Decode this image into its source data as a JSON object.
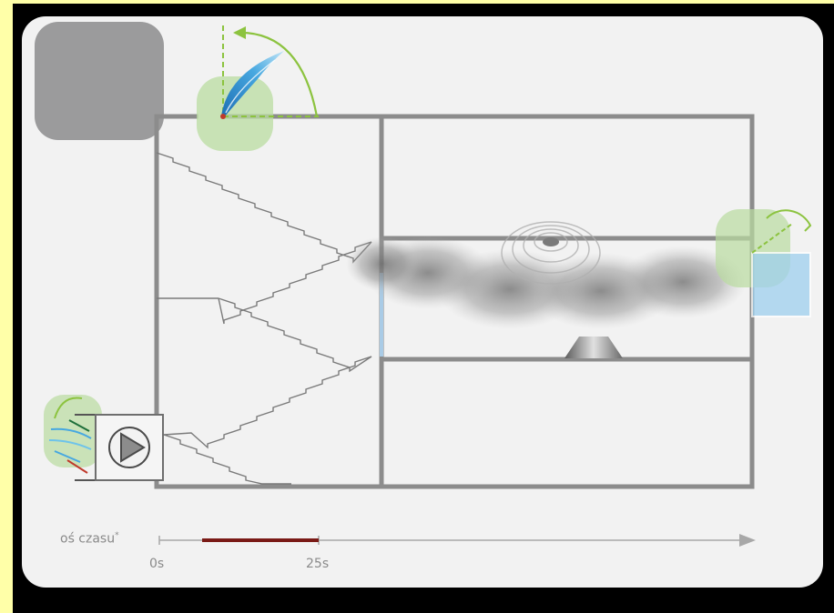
{
  "timeline": {
    "axis_label": "oś czasu",
    "axis_marker": "*",
    "tick_start": "0s",
    "tick_mark": "25s"
  },
  "colors": {
    "background": "#000000",
    "border_strip": "#ffffa8",
    "panel": "#f2f2f2",
    "wall": "#8c8c8c",
    "corner_block": "#9b9b9c",
    "highlight_green": "#b9dca0",
    "highlight_blue": "#9fd0ee",
    "timeline_segment": "#7a1a16",
    "timeline_axis": "#a8a8a8"
  },
  "icons": {
    "fan": "fan-icon",
    "damper": "damper-flap-icon",
    "rotate_arrow": "rotate-arrow-icon",
    "smoke_cloud": "smoke-cloud-icon",
    "fire_source": "fire-source-icon"
  }
}
